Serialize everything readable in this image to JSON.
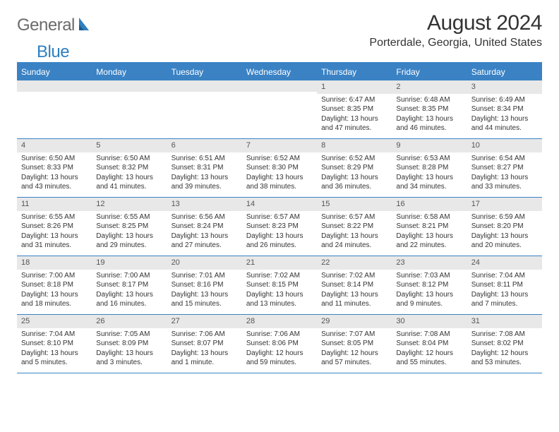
{
  "logo": {
    "part1": "General",
    "part2": "Blue"
  },
  "title": "August 2024",
  "location": "Porterdale, Georgia, United States",
  "colors": {
    "header_bg": "#3a82c4",
    "header_text": "#ffffff",
    "daynum_bg": "#e8e8e8",
    "border": "#3a82c4",
    "logo_gray": "#6b6b6b",
    "logo_blue": "#2f7fbf"
  },
  "day_names": [
    "Sunday",
    "Monday",
    "Tuesday",
    "Wednesday",
    "Thursday",
    "Friday",
    "Saturday"
  ],
  "weeks": [
    [
      {
        "n": "",
        "lines": []
      },
      {
        "n": "",
        "lines": []
      },
      {
        "n": "",
        "lines": []
      },
      {
        "n": "",
        "lines": []
      },
      {
        "n": "1",
        "lines": [
          "Sunrise: 6:47 AM",
          "Sunset: 8:35 PM",
          "Daylight: 13 hours and 47 minutes."
        ]
      },
      {
        "n": "2",
        "lines": [
          "Sunrise: 6:48 AM",
          "Sunset: 8:35 PM",
          "Daylight: 13 hours and 46 minutes."
        ]
      },
      {
        "n": "3",
        "lines": [
          "Sunrise: 6:49 AM",
          "Sunset: 8:34 PM",
          "Daylight: 13 hours and 44 minutes."
        ]
      }
    ],
    [
      {
        "n": "4",
        "lines": [
          "Sunrise: 6:50 AM",
          "Sunset: 8:33 PM",
          "Daylight: 13 hours and 43 minutes."
        ]
      },
      {
        "n": "5",
        "lines": [
          "Sunrise: 6:50 AM",
          "Sunset: 8:32 PM",
          "Daylight: 13 hours and 41 minutes."
        ]
      },
      {
        "n": "6",
        "lines": [
          "Sunrise: 6:51 AM",
          "Sunset: 8:31 PM",
          "Daylight: 13 hours and 39 minutes."
        ]
      },
      {
        "n": "7",
        "lines": [
          "Sunrise: 6:52 AM",
          "Sunset: 8:30 PM",
          "Daylight: 13 hours and 38 minutes."
        ]
      },
      {
        "n": "8",
        "lines": [
          "Sunrise: 6:52 AM",
          "Sunset: 8:29 PM",
          "Daylight: 13 hours and 36 minutes."
        ]
      },
      {
        "n": "9",
        "lines": [
          "Sunrise: 6:53 AM",
          "Sunset: 8:28 PM",
          "Daylight: 13 hours and 34 minutes."
        ]
      },
      {
        "n": "10",
        "lines": [
          "Sunrise: 6:54 AM",
          "Sunset: 8:27 PM",
          "Daylight: 13 hours and 33 minutes."
        ]
      }
    ],
    [
      {
        "n": "11",
        "lines": [
          "Sunrise: 6:55 AM",
          "Sunset: 8:26 PM",
          "Daylight: 13 hours and 31 minutes."
        ]
      },
      {
        "n": "12",
        "lines": [
          "Sunrise: 6:55 AM",
          "Sunset: 8:25 PM",
          "Daylight: 13 hours and 29 minutes."
        ]
      },
      {
        "n": "13",
        "lines": [
          "Sunrise: 6:56 AM",
          "Sunset: 8:24 PM",
          "Daylight: 13 hours and 27 minutes."
        ]
      },
      {
        "n": "14",
        "lines": [
          "Sunrise: 6:57 AM",
          "Sunset: 8:23 PM",
          "Daylight: 13 hours and 26 minutes."
        ]
      },
      {
        "n": "15",
        "lines": [
          "Sunrise: 6:57 AM",
          "Sunset: 8:22 PM",
          "Daylight: 13 hours and 24 minutes."
        ]
      },
      {
        "n": "16",
        "lines": [
          "Sunrise: 6:58 AM",
          "Sunset: 8:21 PM",
          "Daylight: 13 hours and 22 minutes."
        ]
      },
      {
        "n": "17",
        "lines": [
          "Sunrise: 6:59 AM",
          "Sunset: 8:20 PM",
          "Daylight: 13 hours and 20 minutes."
        ]
      }
    ],
    [
      {
        "n": "18",
        "lines": [
          "Sunrise: 7:00 AM",
          "Sunset: 8:18 PM",
          "Daylight: 13 hours and 18 minutes."
        ]
      },
      {
        "n": "19",
        "lines": [
          "Sunrise: 7:00 AM",
          "Sunset: 8:17 PM",
          "Daylight: 13 hours and 16 minutes."
        ]
      },
      {
        "n": "20",
        "lines": [
          "Sunrise: 7:01 AM",
          "Sunset: 8:16 PM",
          "Daylight: 13 hours and 15 minutes."
        ]
      },
      {
        "n": "21",
        "lines": [
          "Sunrise: 7:02 AM",
          "Sunset: 8:15 PM",
          "Daylight: 13 hours and 13 minutes."
        ]
      },
      {
        "n": "22",
        "lines": [
          "Sunrise: 7:02 AM",
          "Sunset: 8:14 PM",
          "Daylight: 13 hours and 11 minutes."
        ]
      },
      {
        "n": "23",
        "lines": [
          "Sunrise: 7:03 AM",
          "Sunset: 8:12 PM",
          "Daylight: 13 hours and 9 minutes."
        ]
      },
      {
        "n": "24",
        "lines": [
          "Sunrise: 7:04 AM",
          "Sunset: 8:11 PM",
          "Daylight: 13 hours and 7 minutes."
        ]
      }
    ],
    [
      {
        "n": "25",
        "lines": [
          "Sunrise: 7:04 AM",
          "Sunset: 8:10 PM",
          "Daylight: 13 hours and 5 minutes."
        ]
      },
      {
        "n": "26",
        "lines": [
          "Sunrise: 7:05 AM",
          "Sunset: 8:09 PM",
          "Daylight: 13 hours and 3 minutes."
        ]
      },
      {
        "n": "27",
        "lines": [
          "Sunrise: 7:06 AM",
          "Sunset: 8:07 PM",
          "Daylight: 13 hours and 1 minute."
        ]
      },
      {
        "n": "28",
        "lines": [
          "Sunrise: 7:06 AM",
          "Sunset: 8:06 PM",
          "Daylight: 12 hours and 59 minutes."
        ]
      },
      {
        "n": "29",
        "lines": [
          "Sunrise: 7:07 AM",
          "Sunset: 8:05 PM",
          "Daylight: 12 hours and 57 minutes."
        ]
      },
      {
        "n": "30",
        "lines": [
          "Sunrise: 7:08 AM",
          "Sunset: 8:04 PM",
          "Daylight: 12 hours and 55 minutes."
        ]
      },
      {
        "n": "31",
        "lines": [
          "Sunrise: 7:08 AM",
          "Sunset: 8:02 PM",
          "Daylight: 12 hours and 53 minutes."
        ]
      }
    ]
  ]
}
